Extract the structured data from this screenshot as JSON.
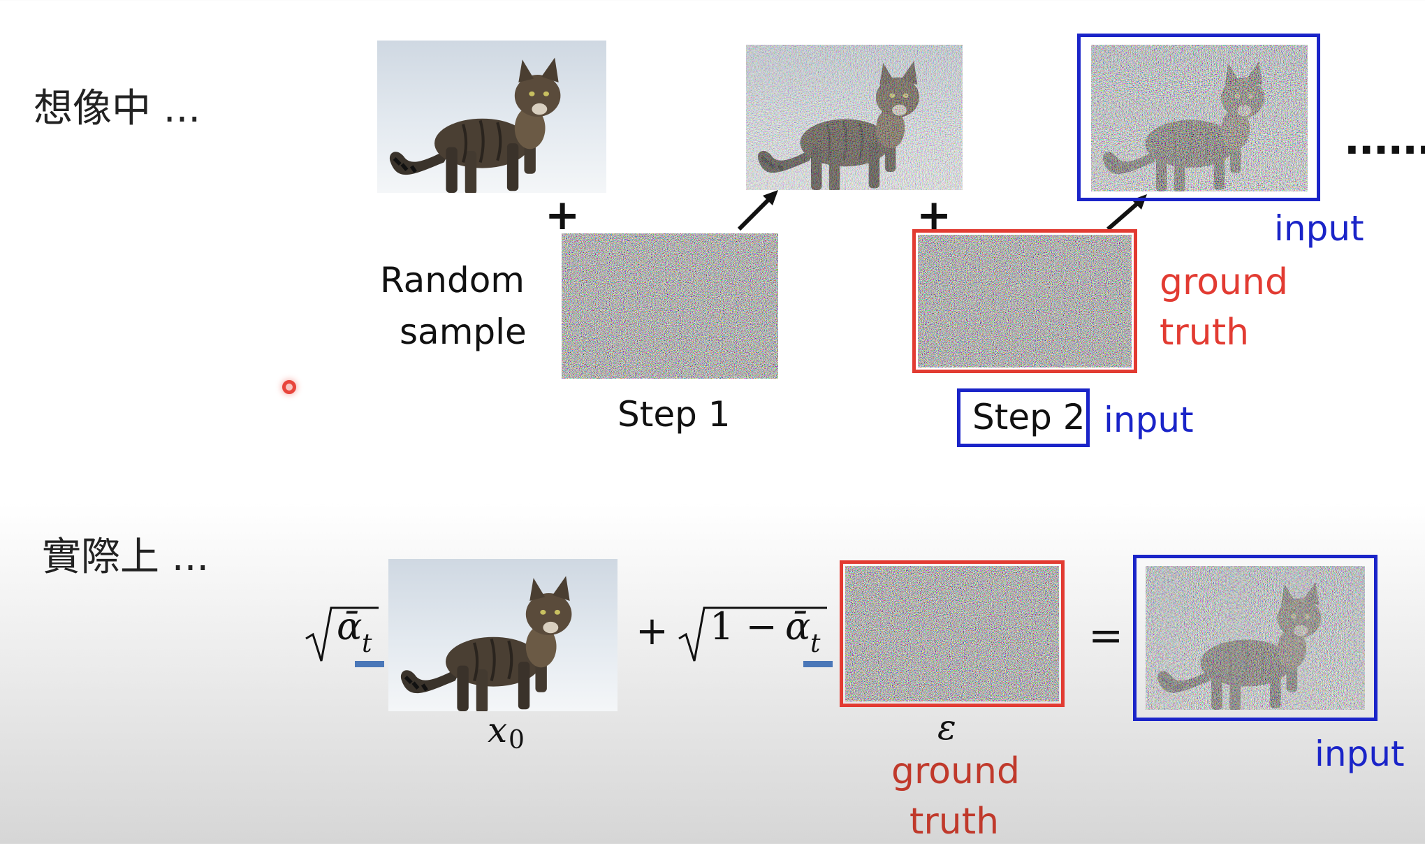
{
  "top": {
    "heading": "想像中 ...",
    "random_line1": "Random",
    "random_line2": "sample",
    "step1": "Step 1",
    "step2": "Step 2",
    "step2_input": "input",
    "input_label": "input",
    "ground_line1": "ground",
    "ground_line2": "truth",
    "dots": "......",
    "plus": "+"
  },
  "bottom": {
    "heading": "實際上 ...",
    "x0_symbol": "x",
    "x0_subscript": "0",
    "epsilon": "ε",
    "ground_line1": "ground",
    "ground_line2": "truth",
    "input_label": "input",
    "alpha": "ᾱ",
    "alpha_subscript": "t",
    "one_minus": "1 −",
    "plus": "+",
    "equals": "="
  },
  "colors": {
    "blue": "#1a24c8",
    "red": "#e23b32",
    "dark_red": "#c0392b",
    "underline": "#4a77b8"
  },
  "icons": [
    "cat-image",
    "noise-image",
    "noisy-cat-image",
    "arrow-icon",
    "laser-pointer-dot"
  ]
}
